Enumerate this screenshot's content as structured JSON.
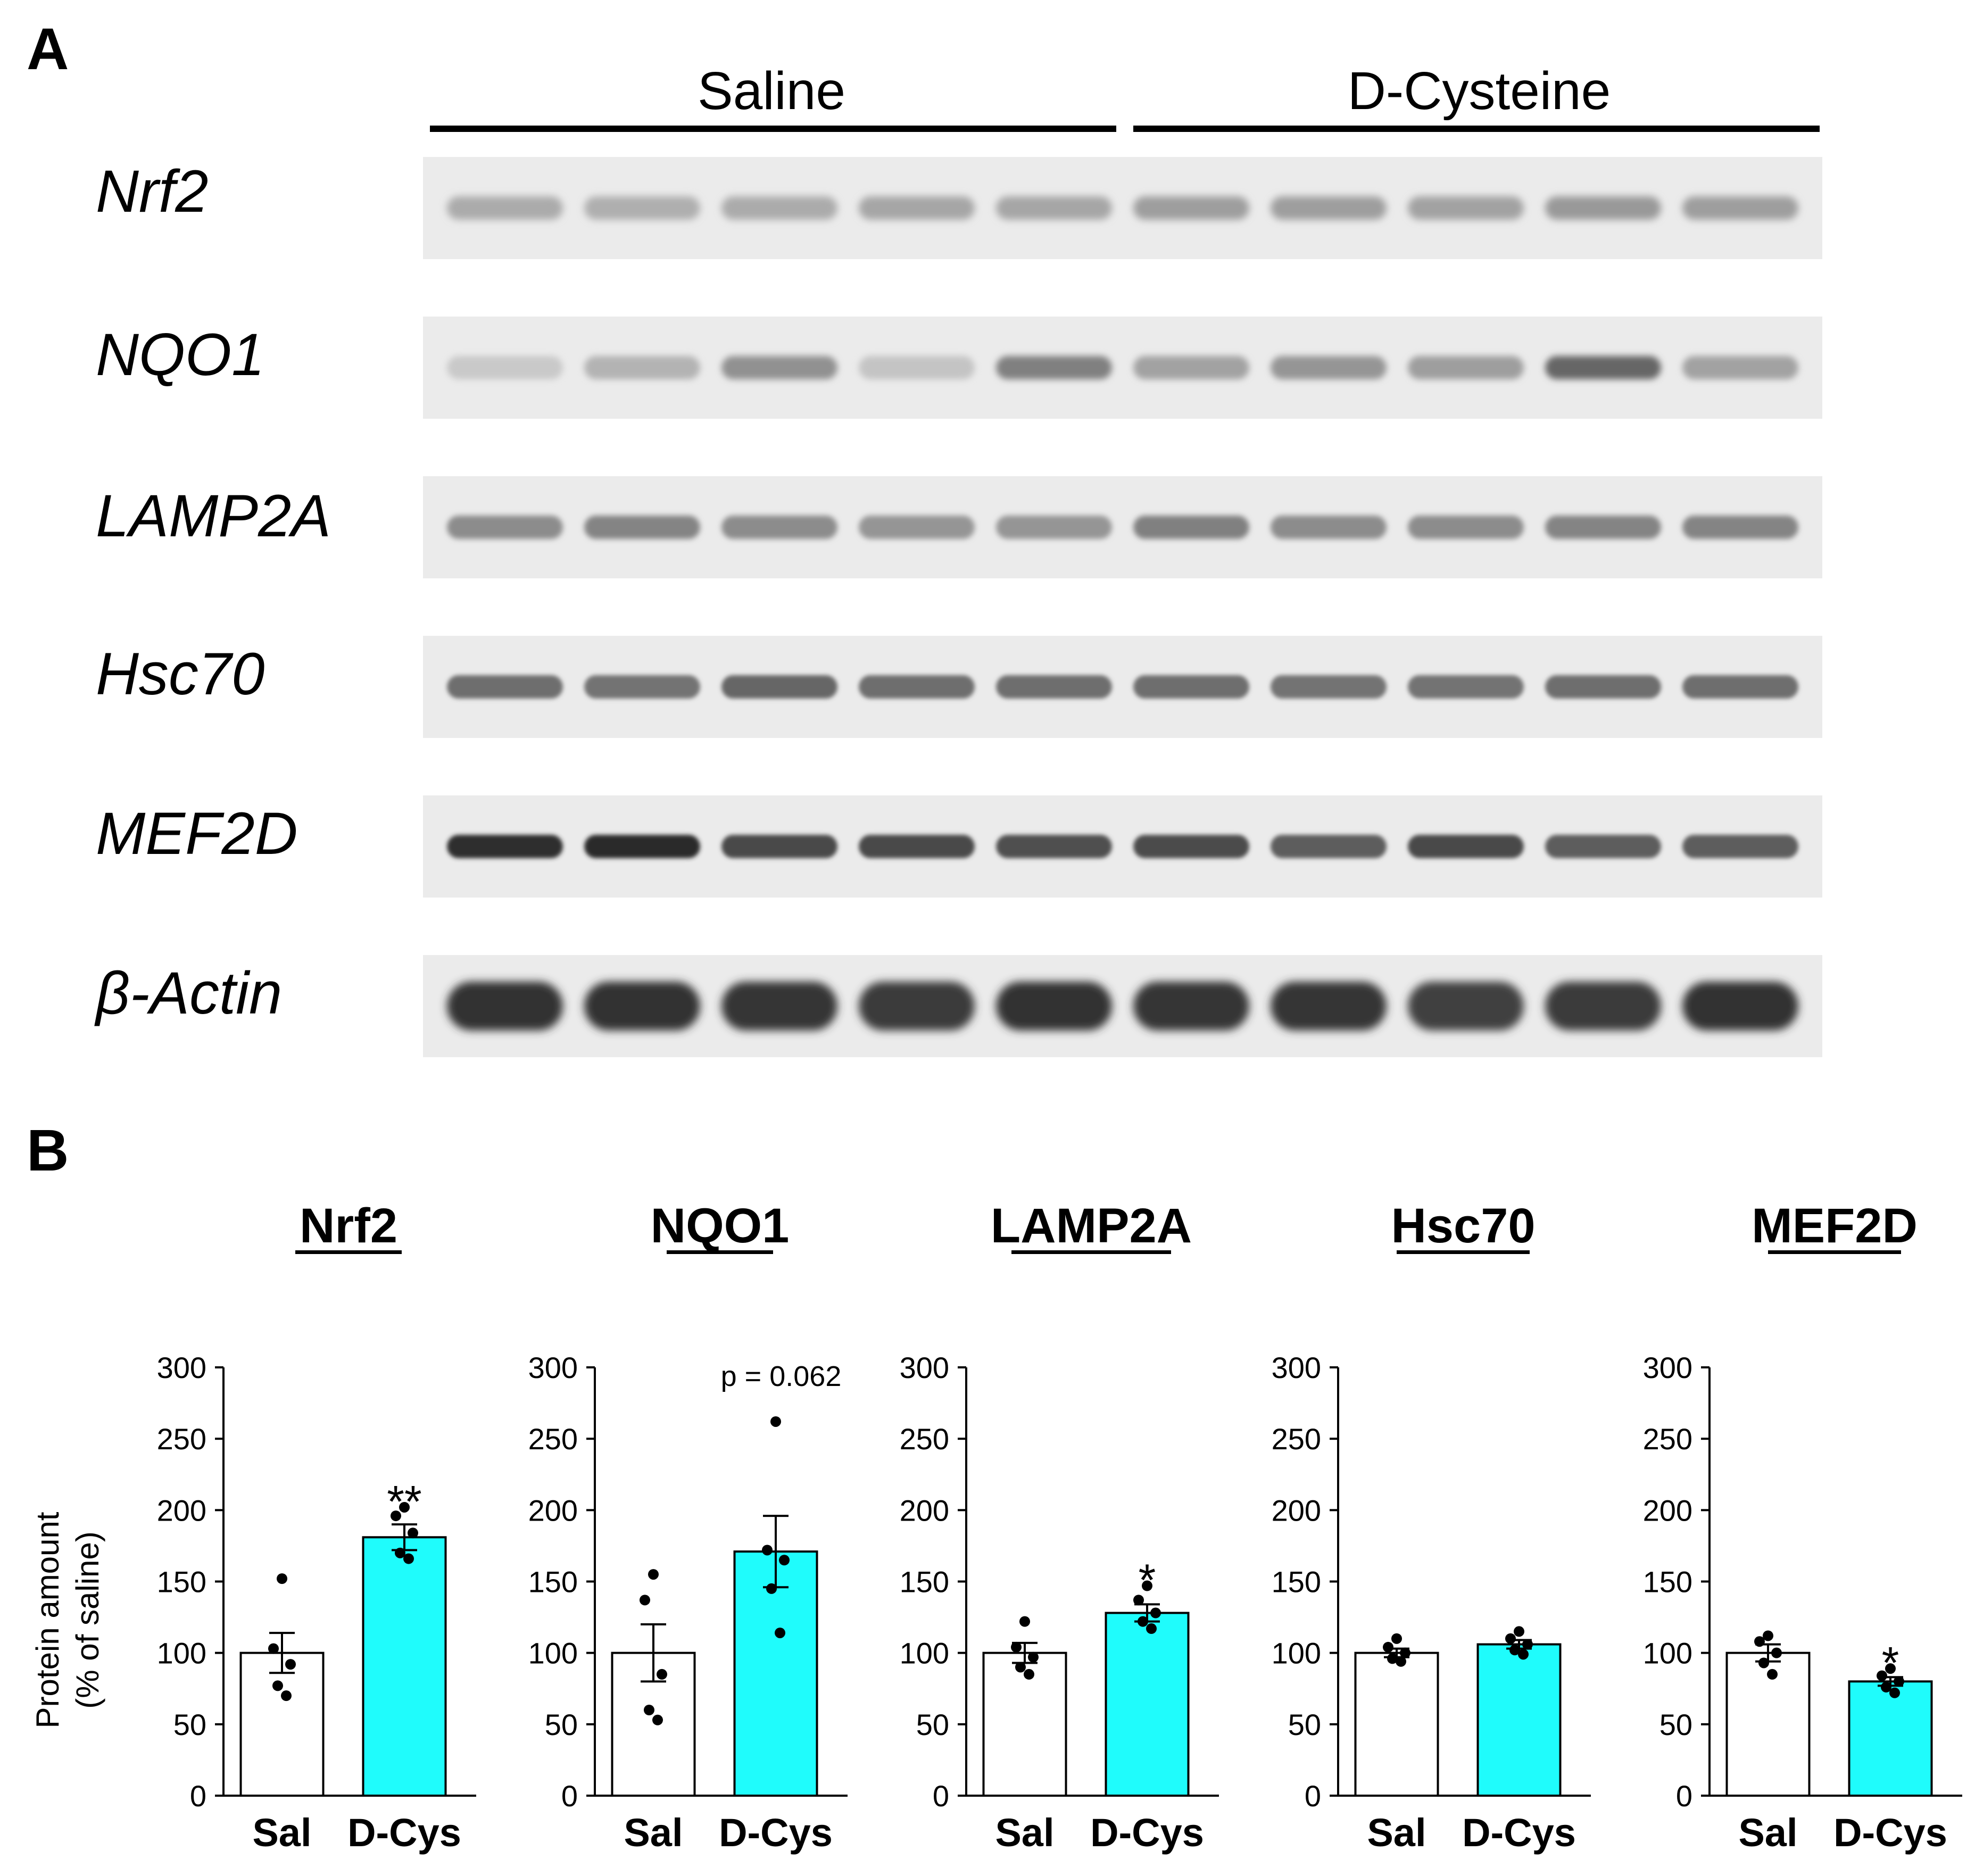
{
  "panel_a": {
    "label": "A",
    "groups": [
      {
        "name": "Saline",
        "lanes": 5
      },
      {
        "name": "D-Cysteine",
        "lanes": 5
      }
    ],
    "blots": [
      {
        "protein": "Nrf2",
        "lane_intensity": [
          0.3,
          0.28,
          0.3,
          0.32,
          0.32,
          0.36,
          0.36,
          0.34,
          0.38,
          0.36
        ],
        "blur": 7
      },
      {
        "protein": "NQO1",
        "lane_intensity": [
          0.16,
          0.26,
          0.42,
          0.18,
          0.5,
          0.34,
          0.4,
          0.36,
          0.62,
          0.34
        ],
        "blur": 6
      },
      {
        "protein": "LAMP2A",
        "lane_intensity": [
          0.44,
          0.48,
          0.44,
          0.4,
          0.4,
          0.5,
          0.44,
          0.44,
          0.48,
          0.48
        ],
        "blur": 5
      },
      {
        "protein": "Hsc70",
        "lane_intensity": [
          0.58,
          0.56,
          0.62,
          0.58,
          0.58,
          0.58,
          0.56,
          0.56,
          0.58,
          0.58
        ],
        "blur": 4
      },
      {
        "protein": "MEF2D",
        "lane_intensity": [
          0.88,
          0.9,
          0.76,
          0.76,
          0.72,
          0.74,
          0.66,
          0.76,
          0.66,
          0.66
        ],
        "blur": 4
      },
      {
        "protein": "β-Actin",
        "lane_intensity": [
          0.86,
          0.86,
          0.84,
          0.82,
          0.86,
          0.84,
          0.84,
          0.8,
          0.82,
          0.86
        ],
        "blur": 8
      }
    ]
  },
  "panel_b": {
    "label": "B",
    "y_axis_title": [
      "Protein amount",
      "(% of saline)"
    ],
    "category_labels": [
      "Sal",
      "D-Cys"
    ],
    "colors": {
      "saline": "#ffffff",
      "dcys": "#1ffcfc",
      "outline": "#000000"
    }
  },
  "chart_data": [
    {
      "type": "bar",
      "title": "Nrf2",
      "categories": [
        "Sal",
        "D-Cys"
      ],
      "values": [
        100,
        181
      ],
      "sem": [
        14,
        9
      ],
      "points": [
        [
          152,
          103,
          92,
          77,
          70
        ],
        [
          202,
          196,
          184,
          170,
          166
        ]
      ],
      "annotation": "**",
      "ylim": [
        0,
        300
      ],
      "yticks": [
        0,
        50,
        100,
        150,
        200,
        250,
        300
      ]
    },
    {
      "type": "bar",
      "title": "NQO1",
      "categories": [
        "Sal",
        "D-Cys"
      ],
      "values": [
        100,
        171
      ],
      "sem": [
        20,
        25
      ],
      "points": [
        [
          155,
          137,
          85,
          60,
          53
        ],
        [
          262,
          172,
          165,
          145,
          114
        ]
      ],
      "annotation": "p = 0.062",
      "ylim": [
        0,
        300
      ],
      "yticks": [
        0,
        50,
        100,
        150,
        200,
        250,
        300
      ]
    },
    {
      "type": "bar",
      "title": "LAMP2A",
      "categories": [
        "Sal",
        "D-Cys"
      ],
      "values": [
        100,
        128
      ],
      "sem": [
        7,
        6
      ],
      "points": [
        [
          122,
          104,
          97,
          90,
          85
        ],
        [
          147,
          137,
          128,
          122,
          117
        ]
      ],
      "annotation": "*",
      "ylim": [
        0,
        300
      ],
      "yticks": [
        0,
        50,
        100,
        150,
        200,
        250,
        300
      ]
    },
    {
      "type": "bar",
      "title": "Hsc70",
      "categories": [
        "Sal",
        "D-Cys"
      ],
      "values": [
        100,
        106
      ],
      "sem": [
        3,
        3
      ],
      "points": [
        [
          110,
          104,
          100,
          96,
          94
        ],
        [
          115,
          110,
          106,
          102,
          99
        ]
      ],
      "annotation": "",
      "ylim": [
        0,
        300
      ],
      "yticks": [
        0,
        50,
        100,
        150,
        200,
        250,
        300
      ]
    },
    {
      "type": "bar",
      "title": "MEF2D",
      "categories": [
        "Sal",
        "D-Cys"
      ],
      "values": [
        100,
        80
      ],
      "sem": [
        6,
        3
      ],
      "points": [
        [
          112,
          108,
          100,
          93,
          85
        ],
        [
          89,
          84,
          80,
          76,
          72
        ]
      ],
      "annotation": "*",
      "ylim": [
        0,
        300
      ],
      "yticks": [
        0,
        50,
        100,
        150,
        200,
        250,
        300
      ]
    }
  ]
}
